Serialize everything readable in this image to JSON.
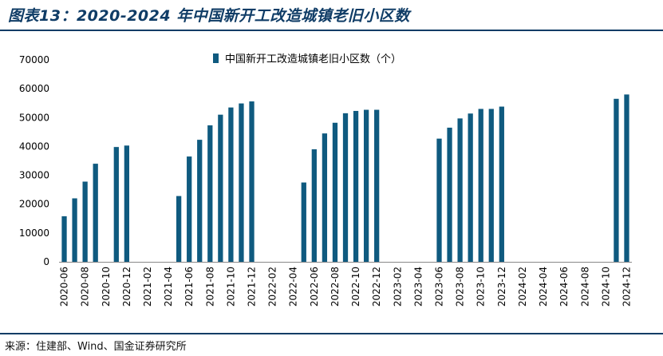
{
  "header": {
    "title": "图表13：2020-2024 年中国新开工改造城镇老旧小区数"
  },
  "footer": {
    "source": "来源：住建部、Wind、国金证券研究所"
  },
  "colors": {
    "bar": "#0f5a7f",
    "rule": "#0f3c66"
  },
  "chart_data": {
    "type": "bar",
    "title": "",
    "xlabel": "",
    "ylabel": "",
    "ylim": [
      0,
      70000
    ],
    "yticks": [
      0,
      10000,
      20000,
      30000,
      40000,
      50000,
      60000,
      70000
    ],
    "grid": false,
    "legend_position": "top-center",
    "categories": [
      "2020-06",
      "2020-07",
      "2020-08",
      "2020-09",
      "2020-10",
      "2020-11",
      "2020-12",
      "2021-01",
      "2021-02",
      "2021-03",
      "2021-04",
      "2021-05",
      "2021-06",
      "2021-07",
      "2021-08",
      "2021-09",
      "2021-10",
      "2021-11",
      "2021-12",
      "2022-01",
      "2022-02",
      "2022-03",
      "2022-04",
      "2022-05",
      "2022-06",
      "2022-07",
      "2022-08",
      "2022-09",
      "2022-10",
      "2022-11",
      "2022-12",
      "2023-01",
      "2023-02",
      "2023-03",
      "2023-04",
      "2023-05",
      "2023-06",
      "2023-07",
      "2023-08",
      "2023-09",
      "2023-10",
      "2023-11",
      "2023-12",
      "2024-01",
      "2024-02",
      "2024-03",
      "2024-04",
      "2024-05",
      "2024-06",
      "2024-07",
      "2024-08",
      "2024-09",
      "2024-10",
      "2024-11",
      "2024-12"
    ],
    "tick_labels": [
      "2020-06",
      "2020-08",
      "2020-10",
      "2020-12",
      "2021-02",
      "2021-04",
      "2021-06",
      "2021-08",
      "2021-10",
      "2021-12",
      "2022-02",
      "2022-04",
      "2022-06",
      "2022-08",
      "2022-10",
      "2022-12",
      "2023-02",
      "2023-04",
      "2023-06",
      "2023-08",
      "2023-10",
      "2023-12",
      "2024-02",
      "2024-04",
      "2024-06",
      "2024-08",
      "2024-10",
      "2024-12"
    ],
    "series": [
      {
        "name": "中国新开工改造城镇老旧小区数（个）",
        "values": [
          15800,
          22000,
          27800,
          34000,
          null,
          39800,
          40300,
          null,
          null,
          null,
          null,
          22800,
          36500,
          42300,
          47300,
          51000,
          53500,
          54900,
          55600,
          null,
          null,
          null,
          null,
          27500,
          39000,
          44500,
          48200,
          51500,
          52300,
          52700,
          52700,
          null,
          null,
          null,
          null,
          null,
          42700,
          46500,
          49700,
          51400,
          53000,
          53000,
          53800,
          null,
          null,
          null,
          null,
          null,
          null,
          null,
          null,
          null,
          null,
          56500,
          58000
        ]
      }
    ]
  }
}
